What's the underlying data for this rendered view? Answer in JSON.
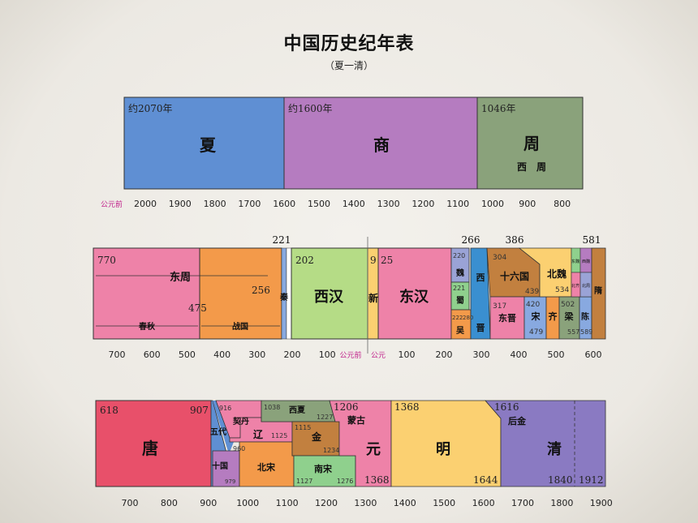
{
  "title": "中国历史纪年表",
  "subtitle": "（夏一清）",
  "colors": {
    "xia": "#5f8fd3",
    "shang": "#b57cc0",
    "zhou": "#8aa27b",
    "eastzhou": "#ee82a8",
    "zhanguo": "#f39a4a",
    "qin": "#88a9e0",
    "westhan": "#b5dc86",
    "xin": "#fbd071",
    "easthan": "#ee82a8",
    "wei": "#9aa3d6",
    "shu": "#8fd08d",
    "wu": "#f39a4a",
    "jin": "#3a8fd0",
    "shiliu": "#c2803f",
    "dongjin": "#ee82a8",
    "beiwei": "#fbd071",
    "tang": "#e8506a",
    "ming": "#fbd071",
    "qing": "#8a7ac2",
    "yuan": "#ee82a8",
    "liao": "#ee82a8",
    "xixia": "#8aa27b",
    "jinchao": "#c2803f",
    "nansong": "#8fd08d",
    "wudai": "#5f8fd3"
  },
  "rows": [
    {
      "id": "row1",
      "ticks": [
        "2000",
        "1900",
        "1800",
        "1700",
        "1600",
        "1500",
        "1400",
        "1300",
        "1200",
        "1100",
        "1000",
        "900",
        "800"
      ],
      "era_label": "公元前",
      "segments": [
        {
          "id": "xia",
          "name": "夏",
          "start": "约2070年"
        },
        {
          "id": "shang",
          "name": "商",
          "start": "约1600年"
        },
        {
          "id": "zhou",
          "name": "周",
          "sub": "西　周",
          "start": "1046年"
        }
      ]
    },
    {
      "id": "row2",
      "ticks_bc": [
        "700",
        "600",
        "500",
        "400",
        "300",
        "200",
        "100"
      ],
      "ticks_ad": [
        "100",
        "200",
        "300",
        "400",
        "500",
        "600"
      ],
      "era_bc": "公元前",
      "era_ad": "公元",
      "markers": {
        "m221": "221",
        "m266": "266",
        "m386": "386",
        "m581": "581"
      },
      "segments": [
        {
          "id": "eastzhou",
          "name": "东周",
          "start": "770",
          "s1": "春秋",
          "s2": "战国",
          "n475": "475",
          "n256": "256"
        },
        {
          "id": "qin",
          "name": "秦"
        },
        {
          "id": "westhan",
          "name": "西汉",
          "start": "202"
        },
        {
          "id": "xin",
          "name": "新",
          "start": "9"
        },
        {
          "id": "easthan",
          "name": "东汉",
          "start": "25"
        },
        {
          "id": "wei",
          "name": "魏",
          "start": "220"
        },
        {
          "id": "shu",
          "name": "蜀",
          "start": "221"
        },
        {
          "id": "wu",
          "name": "吴",
          "start": "222",
          "end": "280"
        },
        {
          "id": "jin",
          "name": "西",
          "sub": "晋"
        },
        {
          "id": "shiliu",
          "name": "十六国",
          "start": "304",
          "end": "439"
        },
        {
          "id": "dongjin",
          "name": "东晋",
          "start": "317"
        },
        {
          "id": "song",
          "name": "宋",
          "start": "420",
          "end": "479"
        },
        {
          "id": "qi",
          "name": "齐"
        },
        {
          "id": "beiwei",
          "name": "北魏",
          "end": "534"
        },
        {
          "id": "liang",
          "name": "梁",
          "start": "502",
          "end": "557"
        },
        {
          "id": "chen",
          "name": "陈",
          "end": "589"
        },
        {
          "id": "sui",
          "name": "隋"
        },
        {
          "id": "small",
          "a": "东魏",
          "b": "西魏",
          "c": "北齐",
          "d": "北周"
        }
      ]
    },
    {
      "id": "row3",
      "ticks": [
        "700",
        "800",
        "900",
        "1000",
        "1100",
        "1200",
        "1300",
        "1400",
        "1500",
        "1600",
        "1700",
        "1800",
        "1900"
      ],
      "segments": [
        {
          "id": "tang",
          "name": "唐",
          "start": "618",
          "end": "907"
        },
        {
          "id": "wudai",
          "name": "五代",
          "sub": "十国",
          "n979": "979"
        },
        {
          "id": "qidan",
          "name": "契丹",
          "start": "916"
        },
        {
          "id": "liao",
          "name": "辽",
          "end": "1125"
        },
        {
          "id": "beisong",
          "name": "北宋",
          "start": "960"
        },
        {
          "id": "xixia",
          "name": "西夏",
          "start": "1038",
          "end": "1227"
        },
        {
          "id": "jinchao",
          "name": "金",
          "start": "1115",
          "end": "1234"
        },
        {
          "id": "nansong",
          "name": "南宋",
          "start": "1127",
          "end": "1276"
        },
        {
          "id": "menggu",
          "name": "蒙古",
          "start": "1206"
        },
        {
          "id": "yuan",
          "name": "元",
          "end": "1368"
        },
        {
          "id": "ming",
          "name": "明",
          "start": "1368",
          "end": "1644"
        },
        {
          "id": "houjin",
          "name": "后金",
          "start": "1616"
        },
        {
          "id": "qing",
          "name": "清",
          "n1840": "1840",
          "end": "1912"
        }
      ]
    }
  ]
}
